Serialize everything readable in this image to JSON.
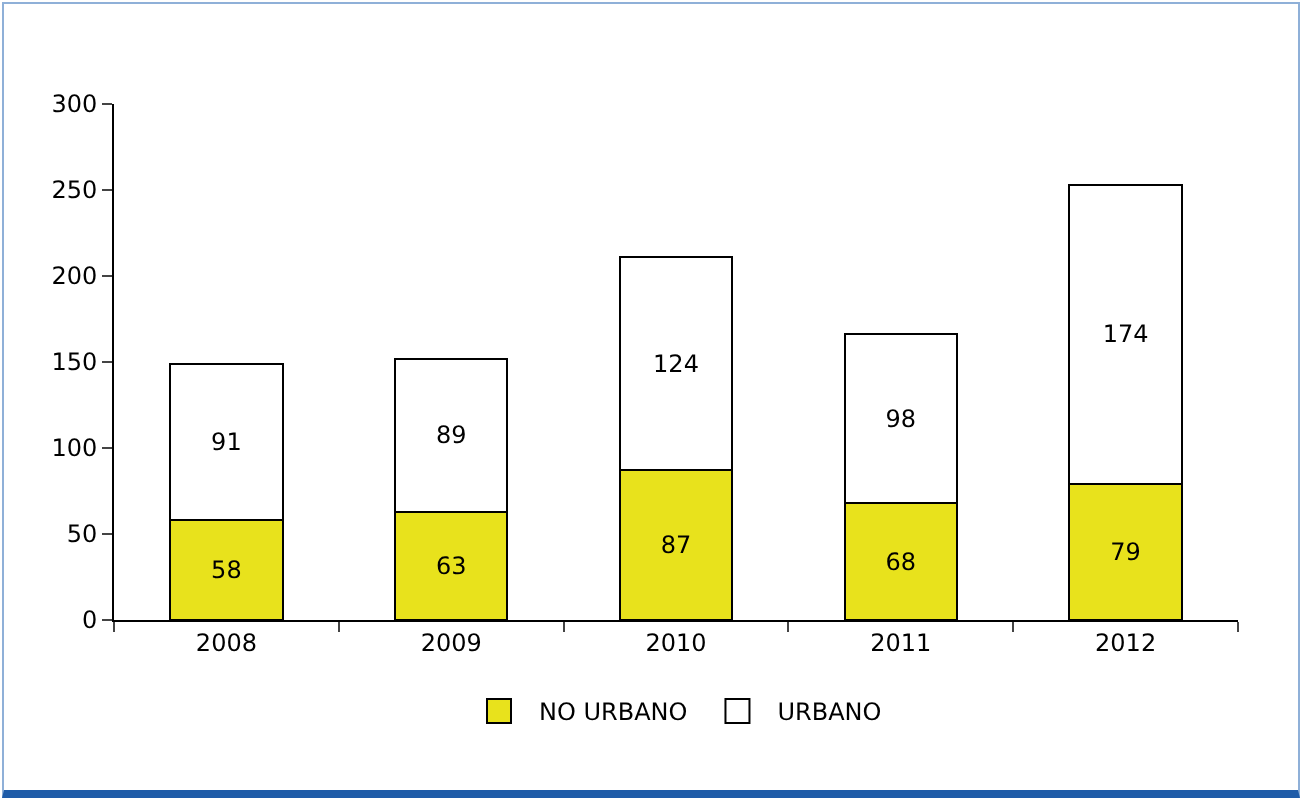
{
  "chart_data": {
    "type": "bar",
    "stacked": true,
    "categories": [
      "2008",
      "2009",
      "2010",
      "2011",
      "2012"
    ],
    "series": [
      {
        "name": "NO URBANO",
        "color": "#e8e21c",
        "values": [
          58,
          63,
          87,
          68,
          79
        ]
      },
      {
        "name": "URBANO",
        "color": "#ffffff",
        "values": [
          91,
          89,
          124,
          98,
          174
        ]
      }
    ],
    "ylim": [
      0,
      300
    ],
    "yticks": [
      0,
      50,
      100,
      150,
      200,
      250,
      300
    ],
    "grid": false,
    "legend": "bottom",
    "data_labels": true
  }
}
